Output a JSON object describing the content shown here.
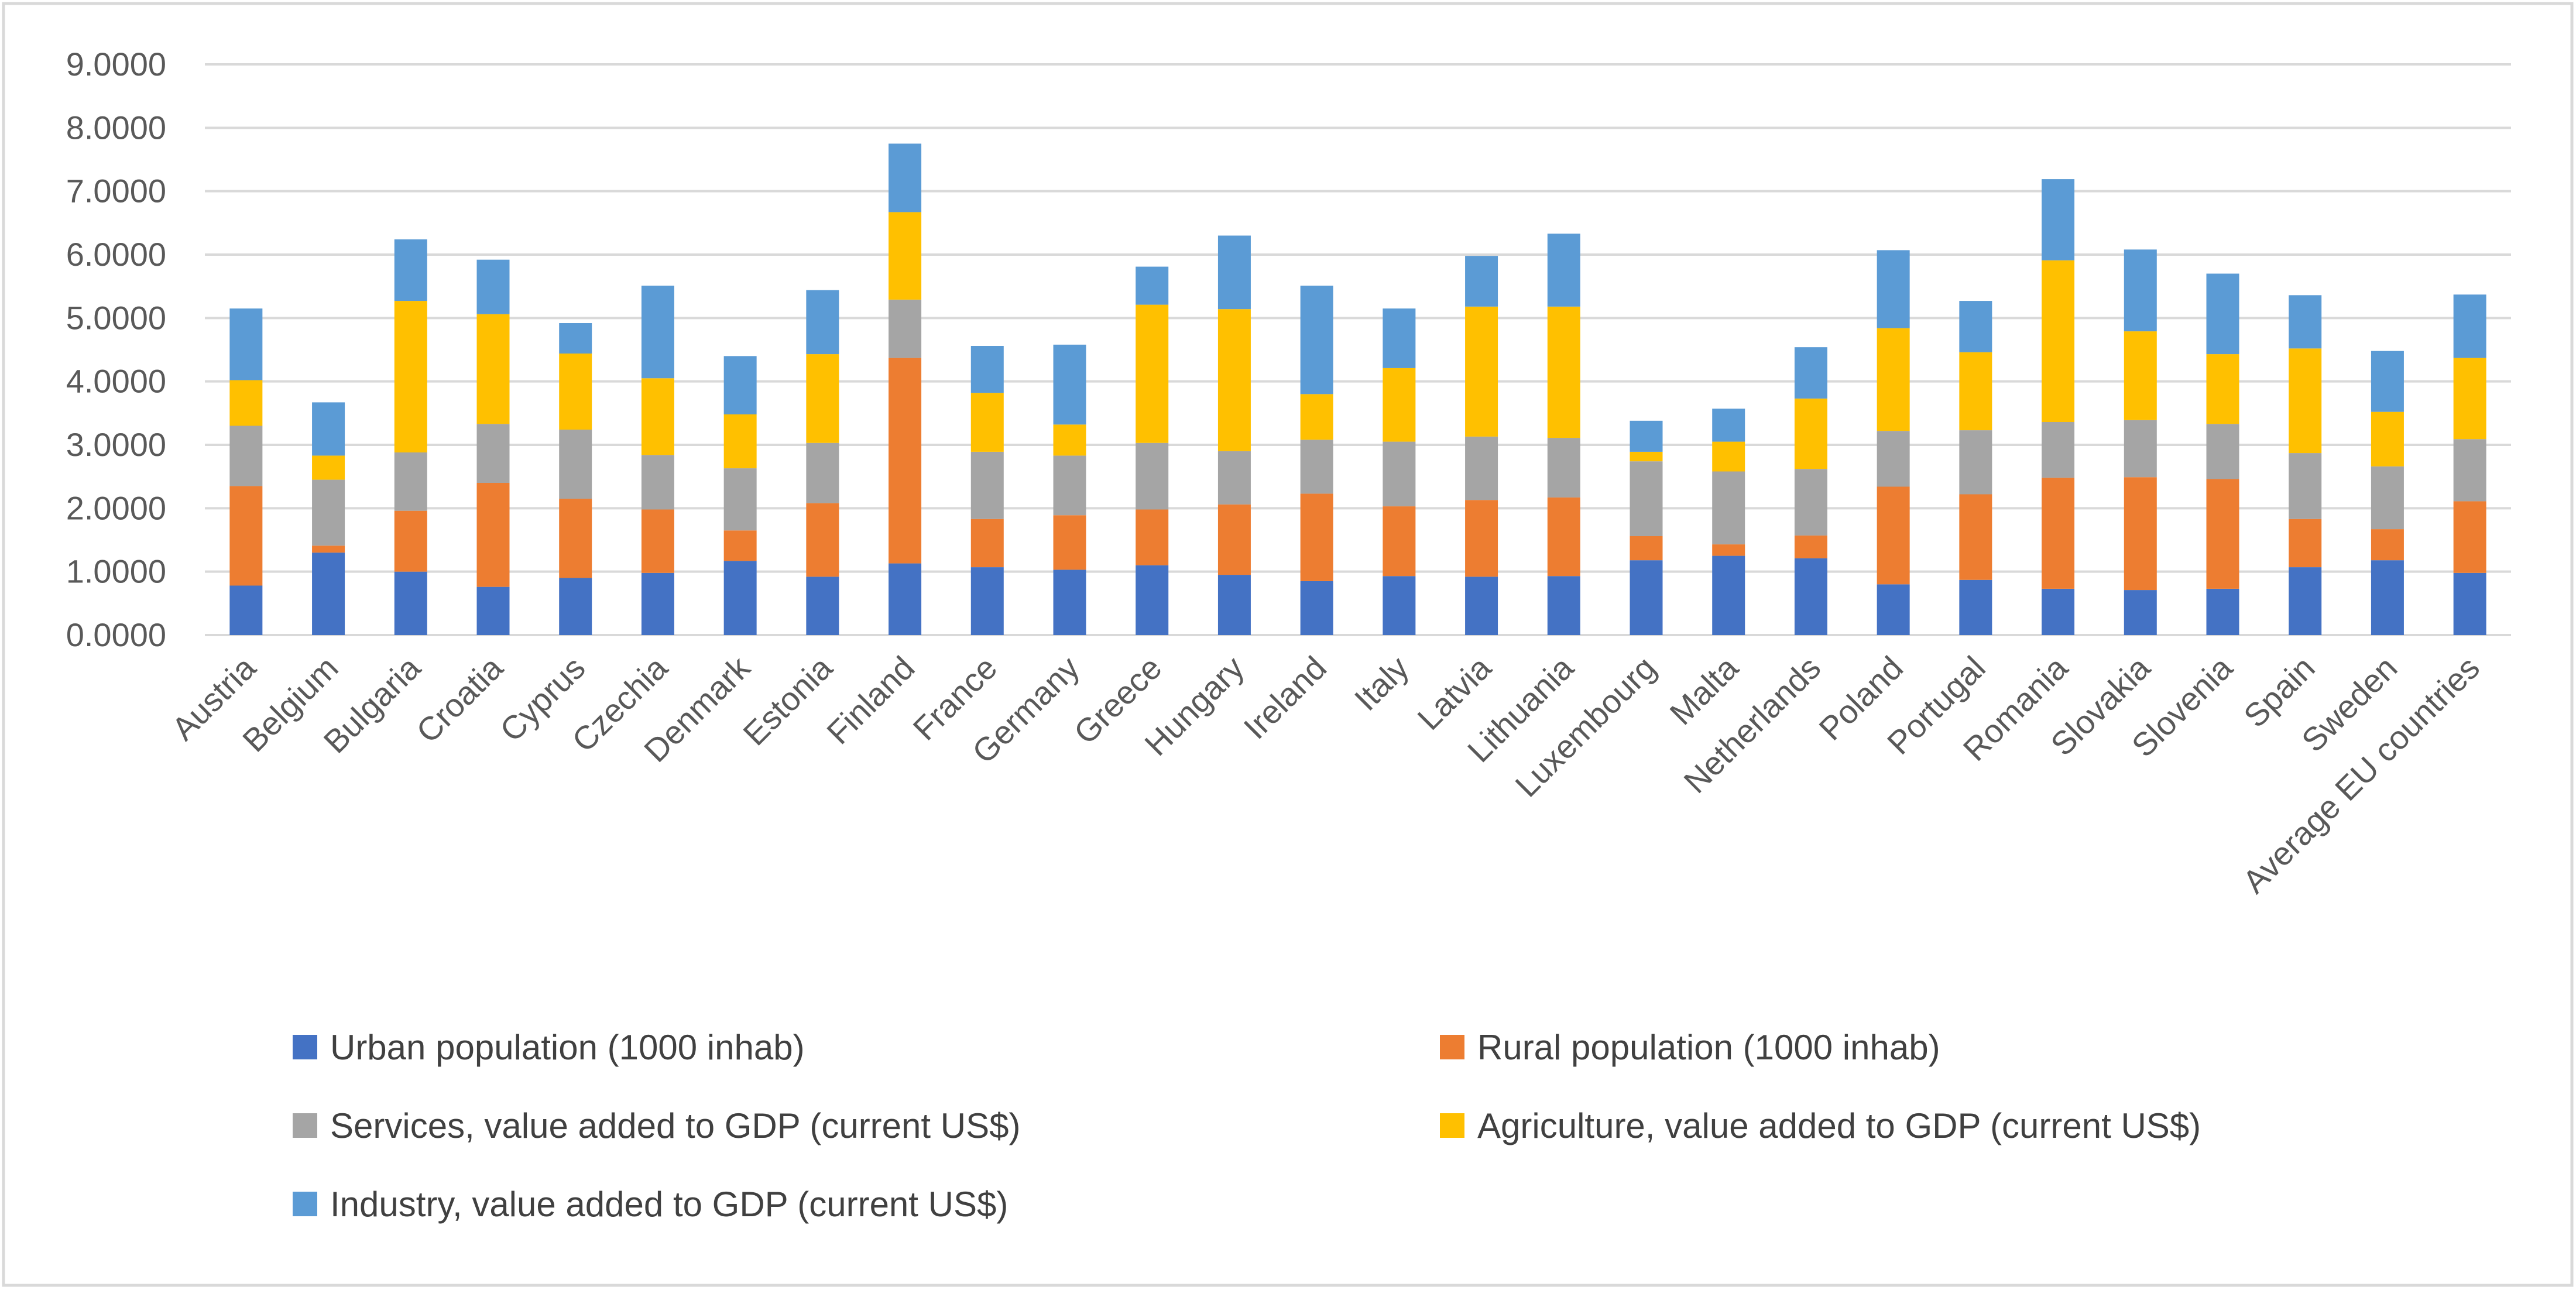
{
  "chart_data": {
    "type": "bar",
    "stacked": true,
    "title": "",
    "xlabel": "",
    "ylabel": "",
    "ylim": [
      0,
      9
    ],
    "y_ticks": [
      "0.0000",
      "1.0000",
      "2.0000",
      "3.0000",
      "4.0000",
      "5.0000",
      "6.0000",
      "7.0000",
      "8.0000",
      "9.0000"
    ],
    "grid": "horizontal",
    "legend_position": "bottom",
    "categories": [
      "Austria",
      "Belgium",
      "Bulgaria",
      "Croatia",
      "Cyprus",
      "Czechia",
      "Denmark",
      "Estonia",
      "Finland",
      "France",
      "Germany",
      "Greece",
      "Hungary",
      "Ireland",
      "Italy",
      "Latvia",
      "Lithuania",
      "Luxembourg",
      "Malta",
      "Netherlands",
      "Poland",
      "Portugal",
      "Romania",
      "Slovakia",
      "Slovenia",
      "Spain",
      "Sweden",
      "Average EU countries"
    ],
    "series": [
      {
        "name": "Urban population (1000 inhab)",
        "color": "#4472c4",
        "values": [
          0.78,
          1.3,
          1.0,
          0.76,
          0.9,
          0.98,
          1.17,
          0.92,
          1.13,
          1.07,
          1.03,
          1.1,
          0.95,
          0.85,
          0.93,
          0.92,
          0.93,
          1.18,
          1.25,
          1.21,
          0.8,
          0.87,
          0.73,
          0.71,
          0.73,
          1.07,
          1.18,
          0.98
        ]
      },
      {
        "name": "Rural population (1000 inhab)",
        "color": "#ed7d31",
        "values": [
          1.57,
          0.11,
          0.96,
          1.64,
          1.25,
          1.0,
          0.48,
          1.16,
          3.24,
          0.76,
          0.86,
          0.88,
          1.11,
          1.38,
          1.1,
          1.21,
          1.24,
          0.38,
          0.18,
          0.36,
          1.54,
          1.35,
          1.75,
          1.78,
          1.73,
          0.76,
          0.49,
          1.13
        ]
      },
      {
        "name": "Services, value added to GDP (current US$)",
        "color": "#a5a5a5",
        "values": [
          0.95,
          1.04,
          0.92,
          0.93,
          1.09,
          0.86,
          0.98,
          0.95,
          0.92,
          1.06,
          0.94,
          1.05,
          0.84,
          0.85,
          1.02,
          1.0,
          0.94,
          1.18,
          1.15,
          1.05,
          0.88,
          1.01,
          0.88,
          0.9,
          0.87,
          1.04,
          0.99,
          0.98
        ]
      },
      {
        "name": "Agriculture, value added to GDP (current US$)",
        "color": "#ffc000",
        "values": [
          0.72,
          0.38,
          2.39,
          1.73,
          1.2,
          1.21,
          0.85,
          1.4,
          1.38,
          0.93,
          0.49,
          2.18,
          2.24,
          0.72,
          1.16,
          2.05,
          2.07,
          0.15,
          0.47,
          1.11,
          1.62,
          1.23,
          2.55,
          1.4,
          1.1,
          1.65,
          0.86,
          1.28
        ]
      },
      {
        "name": "Industry, value added to GDP (current US$)",
        "color": "#5b9bd5",
        "values": [
          1.13,
          0.84,
          0.97,
          0.86,
          0.48,
          1.46,
          0.92,
          1.01,
          1.08,
          0.74,
          1.26,
          0.6,
          1.16,
          1.71,
          0.94,
          0.8,
          1.15,
          0.49,
          0.52,
          0.81,
          1.23,
          0.81,
          1.28,
          1.29,
          1.27,
          0.84,
          0.96,
          1.0
        ]
      }
    ]
  }
}
